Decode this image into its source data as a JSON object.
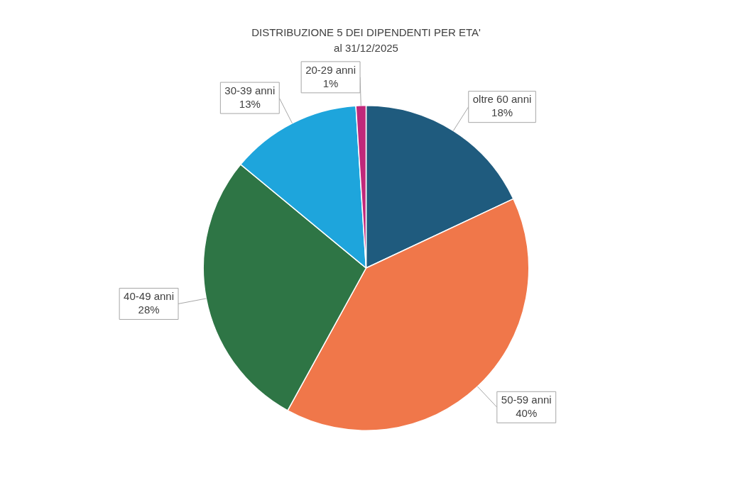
{
  "chart_data": {
    "type": "pie",
    "title": "DISTRIBUZIONE 5 DEI DIPENDENTI PER ETA'",
    "subtitle": "al 31/12/2025",
    "categories": [
      "oltre 60 anni",
      "50-59 anni",
      "40-49 anni",
      "30-39 anni",
      "20-29 anni"
    ],
    "values": [
      18,
      40,
      28,
      13,
      1
    ],
    "value_labels": [
      "18%",
      "40%",
      "28%",
      "13%",
      "1%"
    ],
    "colors": [
      "#1f5b7e",
      "#f0774a",
      "#2e7545",
      "#1ea5dc",
      "#c0287a"
    ],
    "legend": false
  }
}
